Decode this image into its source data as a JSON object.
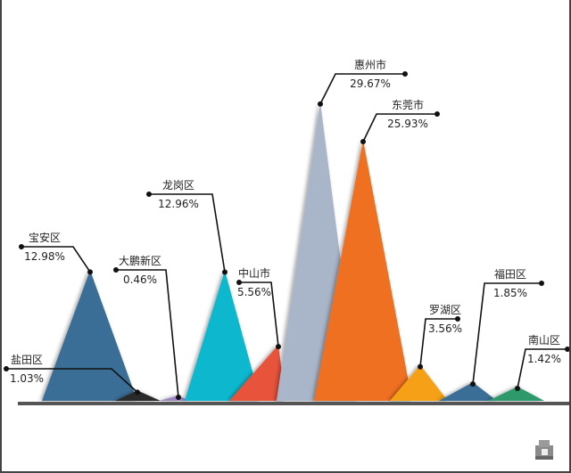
{
  "chart_data": {
    "type": "pictorial-triangle-bar",
    "title": "",
    "categories": [
      "宝安区",
      "盐田区",
      "大鹏新区",
      "龙岗区",
      "中山市",
      "惠州市",
      "东莞市",
      "罗湖区",
      "福田区",
      "南山区"
    ],
    "values": [
      12.98,
      1.03,
      0.46,
      12.96,
      5.56,
      29.67,
      25.93,
      3.56,
      1.85,
      1.42
    ],
    "labels": [
      "12.98%",
      "1.03%",
      "0.46%",
      "12.96%",
      "5.56%",
      "29.67%",
      "25.93%",
      "3.56%",
      "1.85%",
      "1.42%"
    ],
    "unit": "%",
    "colors": [
      "#3a6e96",
      "#2a2a2a",
      "#9b86c4",
      "#10b8cf",
      "#e8533a",
      "#a9b5c8",
      "#f07021",
      "#f5a012",
      "#3a6e96",
      "#2e9a6c"
    ],
    "grid": false,
    "legend": "none"
  },
  "icons": {
    "corner": "cube-logo-icon"
  }
}
